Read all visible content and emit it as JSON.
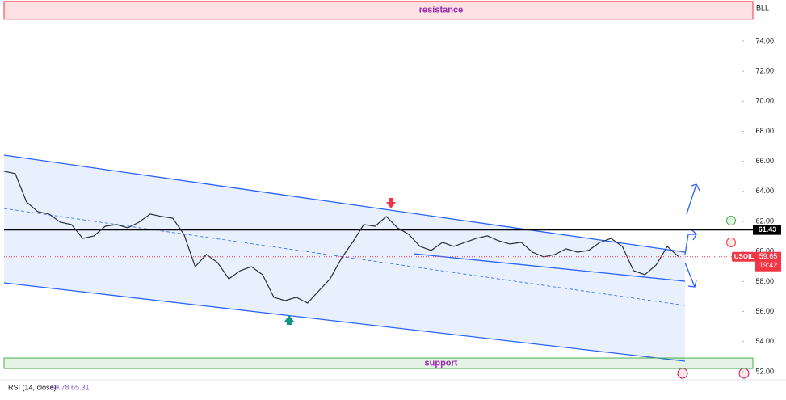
{
  "chart_data": {
    "type": "line",
    "symbol_label": "BLL",
    "ylim": [
      51.46,
      76.74
    ],
    "yticks": [
      {
        "value": 52,
        "label": "52.00"
      },
      {
        "value": 54,
        "label": "54.00"
      },
      {
        "value": 56,
        "label": "56.00"
      },
      {
        "value": 58,
        "label": "58.00"
      },
      {
        "value": 60,
        "label": "60.00"
      },
      {
        "value": 62,
        "label": "62.00"
      },
      {
        "value": 64,
        "label": "64.00"
      },
      {
        "value": 66,
        "label": "66.00"
      },
      {
        "value": 68,
        "label": "68.00"
      },
      {
        "value": 70,
        "label": "70.00"
      },
      {
        "value": 72,
        "label": "72.00"
      },
      {
        "value": 74,
        "label": "74.00"
      }
    ],
    "series": [
      {
        "name": "USOIL",
        "color": "#2a2e39",
        "values": [
          65.34,
          65.18,
          63.3,
          62.65,
          62.49,
          61.95,
          61.79,
          60.87,
          61.04,
          61.68,
          61.79,
          61.57,
          61.95,
          62.49,
          62.33,
          62.22,
          61.14,
          58.99,
          59.8,
          59.26,
          58.18,
          58.72,
          58.99,
          58.45,
          56.95,
          56.73,
          56.95,
          56.57,
          57.38,
          58.18,
          59.53,
          60.61,
          61.79,
          61.68,
          62.33,
          61.57,
          61.14,
          60.34,
          60.07,
          60.61,
          60.34,
          60.61,
          60.87,
          61.04,
          60.71,
          60.5,
          60.61,
          59.96,
          59.64,
          59.8,
          60.18,
          59.96,
          60.07,
          60.61,
          60.87,
          60.34,
          58.72,
          58.45,
          59.1,
          60.34,
          59.65
        ]
      }
    ],
    "zones": [
      {
        "label": "resistance",
        "range": [
          75.46,
          76.64
        ],
        "color": "#f23645"
      },
      {
        "label": "support",
        "range": [
          52.21,
          52.91
        ],
        "color": "#4caf50"
      }
    ],
    "level": {
      "value": 61.43
    },
    "last_price": {
      "value": 59.65,
      "time": "19:42"
    },
    "indicator": {
      "label": "RSI (14, close)",
      "values": [
        59.78,
        65.31
      ]
    }
  }
}
